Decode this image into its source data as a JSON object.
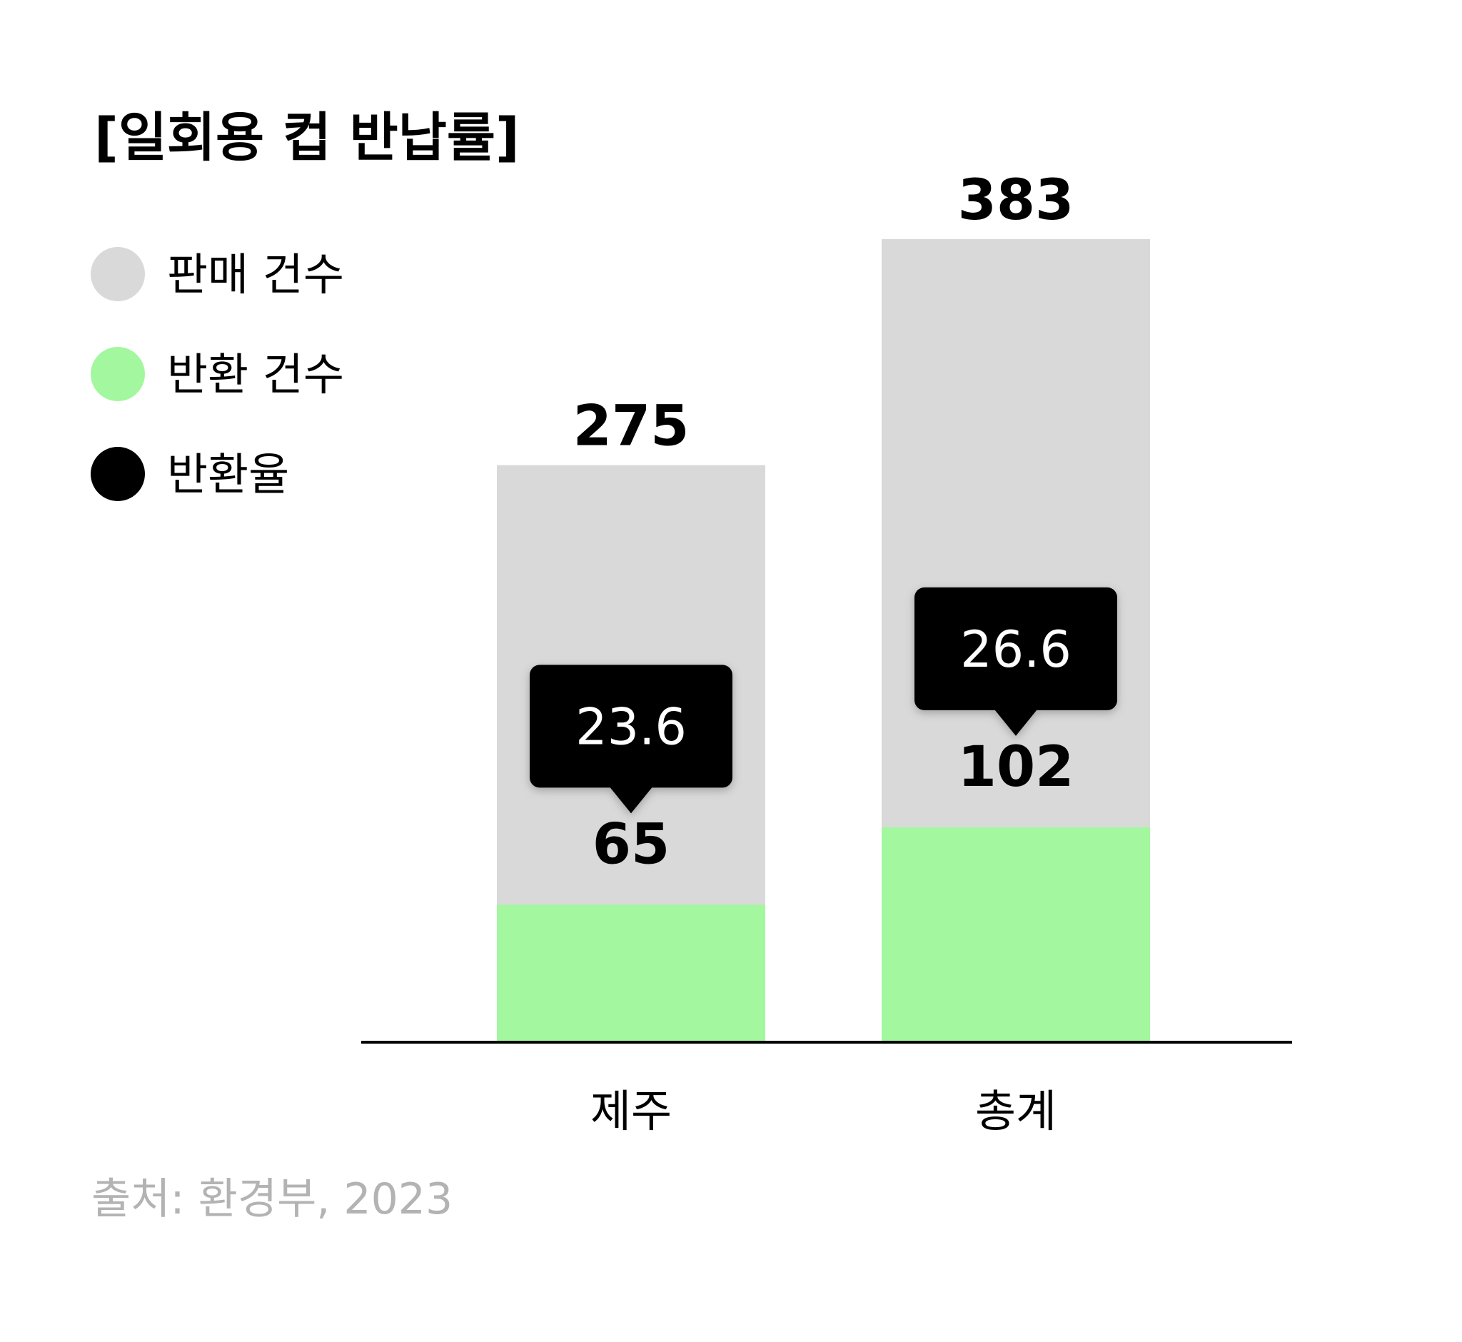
{
  "chart_data": {
    "type": "bar",
    "title": "[일회용 컵 반납률]",
    "categories": [
      "제주",
      "총계"
    ],
    "series": [
      {
        "name": "판매 건수",
        "values": [
          275,
          383
        ],
        "color": "#d9d9d9"
      },
      {
        "name": "반환 건수",
        "values": [
          65,
          102
        ],
        "color": "#a3f79f"
      },
      {
        "name": "반환율",
        "values": [
          23.6,
          26.6
        ],
        "color": "#000000"
      }
    ],
    "ylim": [
      0,
      383
    ],
    "grid": false,
    "legend_position": "left",
    "xlabel": "",
    "ylabel": ""
  },
  "source": "출처: 환경부, 2023"
}
